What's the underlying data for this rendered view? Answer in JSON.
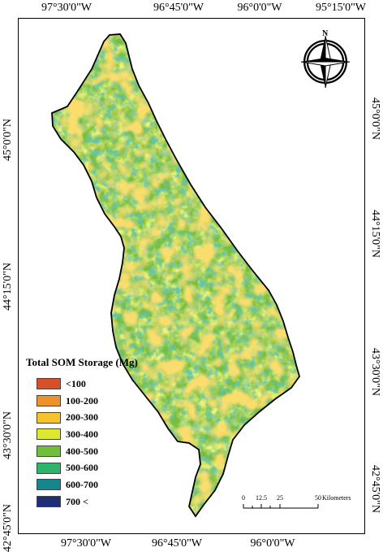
{
  "map": {
    "longitude_labels": [
      "97°30'0\"W",
      "96°45'0\"W",
      "96°0'0\"W",
      "95°15'0\"W"
    ],
    "latitude_labels": [
      "45°0'0\"N",
      "44°15'0\"N",
      "43°30'0\"N",
      "42°45'0\"N"
    ],
    "legend": {
      "title": "Total SOM Storage (Mg)",
      "classes": [
        {
          "label": "<100",
          "color": "#d7502a"
        },
        {
          "label": "100-200",
          "color": "#f0922c"
        },
        {
          "label": "200-300",
          "color": "#f6c42a"
        },
        {
          "label": "300-400",
          "color": "#dde830"
        },
        {
          "label": "400-500",
          "color": "#71bd3c"
        },
        {
          "label": "500-600",
          "color": "#2eb46a"
        },
        {
          "label": "600-700",
          "color": "#17858e"
        },
        {
          "label": "700 <",
          "color": "#1e2e78"
        }
      ]
    },
    "scale_bar": {
      "ticks": [
        "0",
        "12.5",
        "25",
        "50"
      ],
      "unit": "Kilometers"
    },
    "north_arrow_icon": "north-arrow-icon"
  }
}
